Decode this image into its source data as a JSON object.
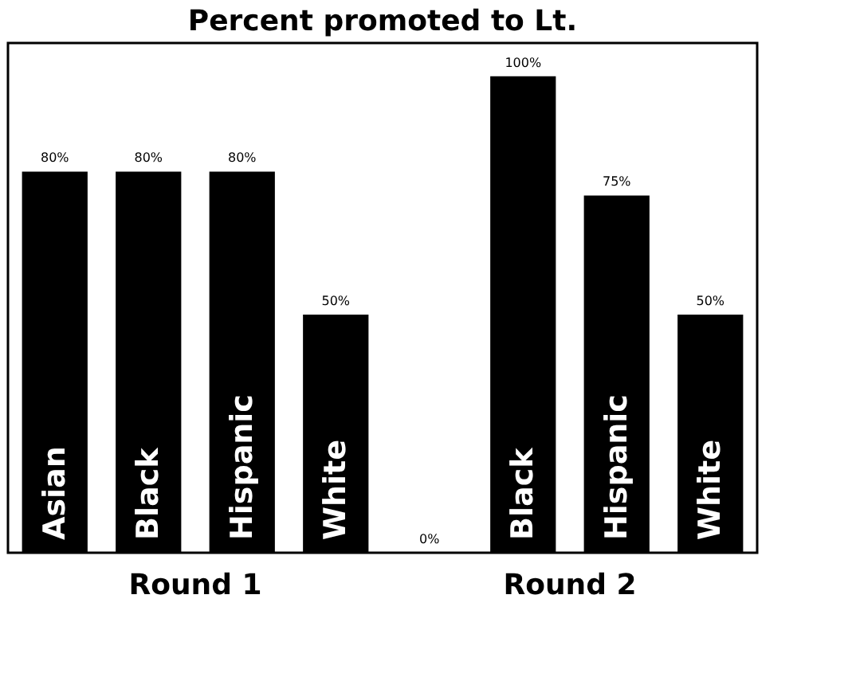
{
  "chart_data": {
    "type": "bar",
    "title": "Percent promoted to Lt.",
    "categories": [
      "Asian",
      "Black",
      "Hispanic",
      "White",
      null,
      "Black",
      "Hispanic",
      "White"
    ],
    "values": [
      80,
      80,
      80,
      50,
      0,
      100,
      75,
      50
    ],
    "value_labels": [
      "80%",
      "80%",
      "80%",
      "50%",
      "0%",
      "100%",
      "75%",
      "50%"
    ],
    "color": "#000000",
    "annotations": [
      "Round 1",
      "Round 2"
    ],
    "grid": false,
    "tick_labels": false
  }
}
